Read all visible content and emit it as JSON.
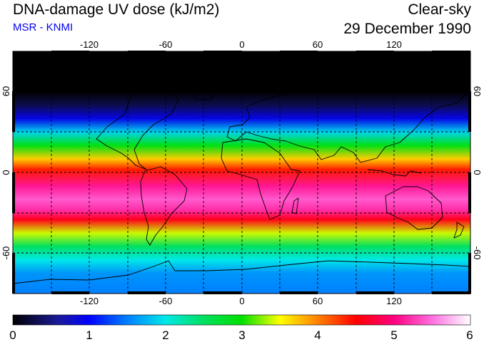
{
  "header": {
    "title": "DNA-damage UV dose (kJ/m2)",
    "credit": "MSR - KNMI",
    "condition": "Clear-sky",
    "date": "29 December 1990"
  },
  "map": {
    "projection": "equirectangular",
    "lon_range": [
      -180,
      180
    ],
    "lat_range": [
      -90,
      90
    ],
    "lon_ticks": [
      -120,
      -60,
      0,
      60,
      120
    ],
    "lat_ticks": [
      60,
      0,
      -60
    ],
    "lon_labels": [
      "-120",
      "-60",
      "0",
      "60",
      "120"
    ],
    "lat_labels": [
      "60",
      "0",
      "-60"
    ],
    "gridlines": "dashed",
    "dose_profile": [
      {
        "lat": 90,
        "dose": 0.0
      },
      {
        "lat": 60,
        "dose": 0.0
      },
      {
        "lat": 50,
        "dose": 0.3
      },
      {
        "lat": 40,
        "dose": 0.9
      },
      {
        "lat": 30,
        "dose": 1.9
      },
      {
        "lat": 20,
        "dose": 2.9
      },
      {
        "lat": 10,
        "dose": 3.7
      },
      {
        "lat": 2,
        "dose": 4.4
      },
      {
        "lat": -10,
        "dose": 5.1
      },
      {
        "lat": -20,
        "dose": 5.4
      },
      {
        "lat": -28,
        "dose": 5.2
      },
      {
        "lat": -35,
        "dose": 4.6
      },
      {
        "lat": -45,
        "dose": 3.4
      },
      {
        "lat": -55,
        "dose": 2.5
      },
      {
        "lat": -65,
        "dose": 2.0
      },
      {
        "lat": -75,
        "dose": 1.6
      },
      {
        "lat": -90,
        "dose": 1.5
      }
    ]
  },
  "colorbar": {
    "min": 0,
    "max": 6,
    "tick_labels": [
      "0",
      "1",
      "2",
      "3",
      "4",
      "5",
      "6"
    ],
    "stops": [
      {
        "value": 0.0,
        "color": "#000000"
      },
      {
        "value": 0.6,
        "color": "#1a1a9a"
      },
      {
        "value": 1.0,
        "color": "#0000ff"
      },
      {
        "value": 1.5,
        "color": "#0080ff"
      },
      {
        "value": 2.0,
        "color": "#00e8e8"
      },
      {
        "value": 2.5,
        "color": "#00e060"
      },
      {
        "value": 3.0,
        "color": "#00e000"
      },
      {
        "value": 3.5,
        "color": "#ffff00"
      },
      {
        "value": 4.0,
        "color": "#ff8000"
      },
      {
        "value": 4.5,
        "color": "#ff0000"
      },
      {
        "value": 5.0,
        "color": "#ff0080"
      },
      {
        "value": 5.5,
        "color": "#ff70e0"
      },
      {
        "value": 6.0,
        "color": "#ffffff"
      }
    ]
  }
}
